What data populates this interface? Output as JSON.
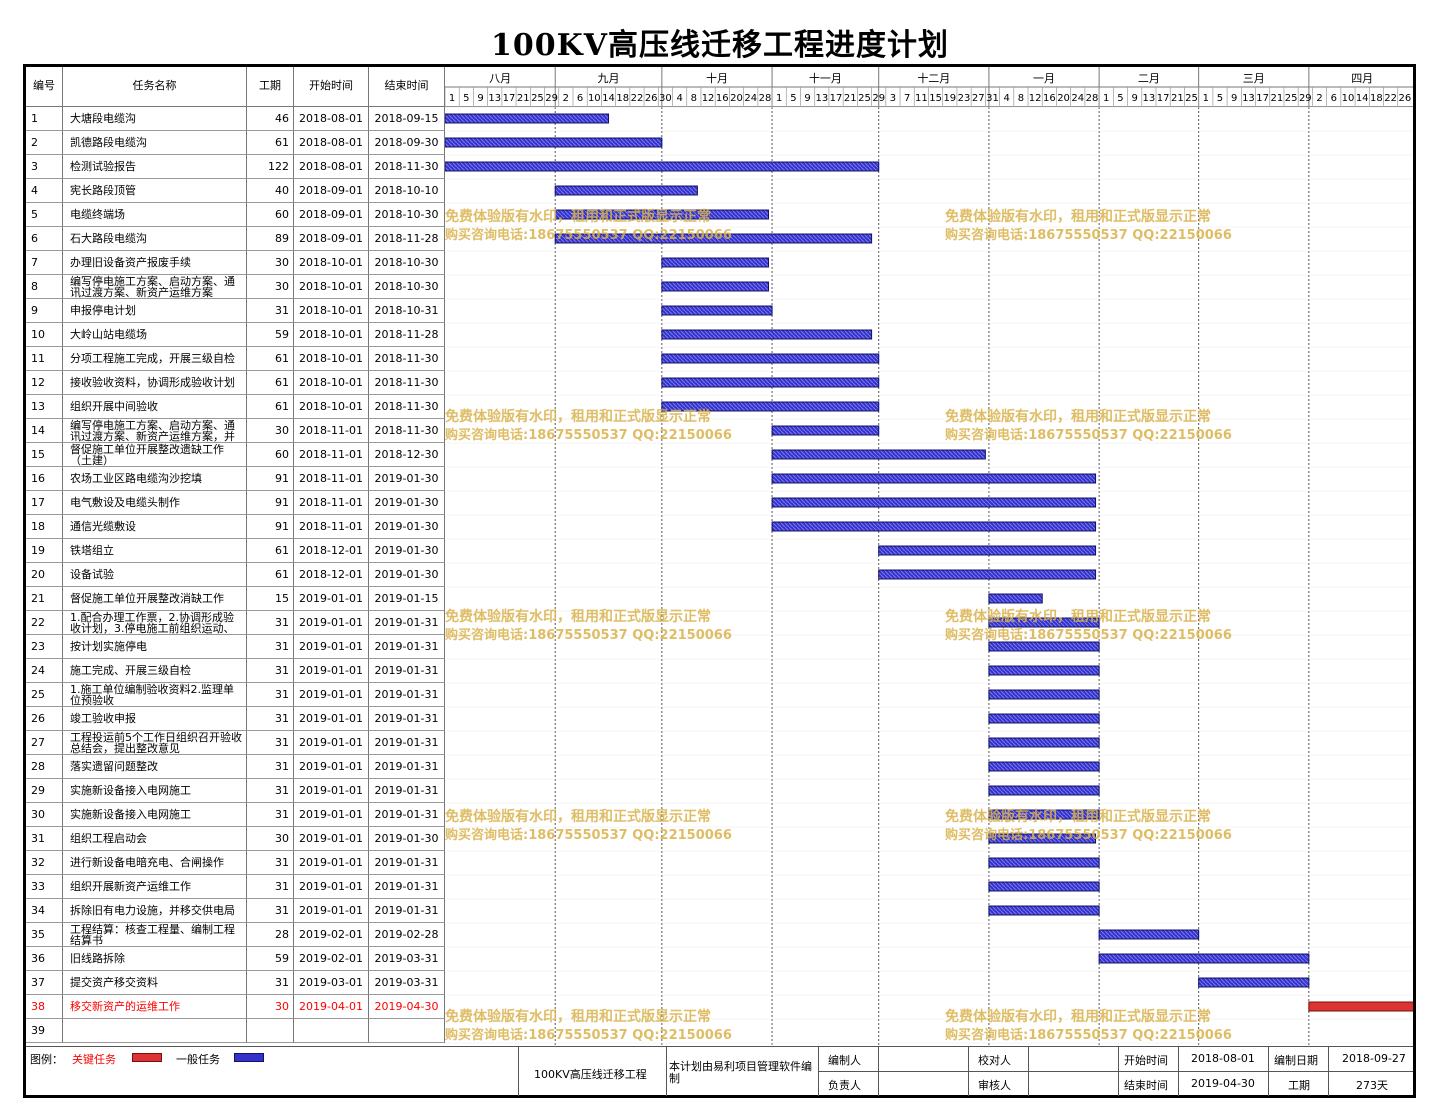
{
  "title": "100KV高压线迁移工程进度计划",
  "columns": {
    "id": "编号",
    "name": "任务名称",
    "duration": "工期",
    "start": "开始时间",
    "end": "结束时间"
  },
  "months": [
    "八月",
    "九月",
    "十月",
    "十一月",
    "十二月",
    "一月",
    "二月",
    "三月",
    "四月"
  ],
  "day_ticks": [
    "1",
    "5",
    "9",
    "13",
    "17",
    "21",
    "25",
    "29",
    "2",
    "6",
    "10",
    "14",
    "18",
    "22",
    "26",
    "30",
    "4",
    "8",
    "12",
    "16",
    "20",
    "24",
    "28",
    "1",
    "5",
    "9",
    "13",
    "17",
    "21",
    "25",
    "29",
    "3",
    "7",
    "11",
    "15",
    "19",
    "23",
    "27",
    "31",
    "4",
    "8",
    "12",
    "16",
    "20",
    "24",
    "28",
    "1",
    "5",
    "9",
    "13",
    "17",
    "21",
    "25",
    "1",
    "5",
    "9",
    "13",
    "17",
    "21",
    "25",
    "29",
    "2",
    "6",
    "10",
    "14",
    "18",
    "22",
    "26"
  ],
  "watermark": {
    "line1": "免费体验版有水印，租用和正式版显示正常",
    "line2": "购买咨询电话:18675550537 QQ:22150066"
  },
  "colors": {
    "normal": "#3333cc",
    "critical": "#dd3333",
    "critical_text": "#ff0000",
    "watermark": "#d9b24a",
    "grid": "#999999"
  },
  "chart_data": {
    "type": "gantt",
    "timeline_start": "2018-08-01",
    "timeline_end": "2019-04-30",
    "tasks": [
      {
        "id": "1",
        "name": "大塘段电缆沟",
        "duration": "46",
        "start": "2018-08-01",
        "end": "2018-09-15",
        "critical": false
      },
      {
        "id": "2",
        "name": "凯德路段电缆沟",
        "duration": "61",
        "start": "2018-08-01",
        "end": "2018-09-30",
        "critical": false
      },
      {
        "id": "3",
        "name": "检测试验报告",
        "duration": "122",
        "start": "2018-08-01",
        "end": "2018-11-30",
        "critical": false
      },
      {
        "id": "4",
        "name": "宪长路段顶管",
        "duration": "40",
        "start": "2018-09-01",
        "end": "2018-10-10",
        "critical": false
      },
      {
        "id": "5",
        "name": "电缆终端场",
        "duration": "60",
        "start": "2018-09-01",
        "end": "2018-10-30",
        "critical": false
      },
      {
        "id": "6",
        "name": "石大路段电缆沟",
        "duration": "89",
        "start": "2018-09-01",
        "end": "2018-11-28",
        "critical": false
      },
      {
        "id": "7",
        "name": "办理旧设备资产报废手续",
        "duration": "30",
        "start": "2018-10-01",
        "end": "2018-10-30",
        "critical": false
      },
      {
        "id": "8",
        "name": "编写停电施工方案、启动方案、通讯过渡方案、新资产运维方案",
        "duration": "30",
        "start": "2018-10-01",
        "end": "2018-10-30",
        "critical": false
      },
      {
        "id": "9",
        "name": "申报停电计划",
        "duration": "31",
        "start": "2018-10-01",
        "end": "2018-10-31",
        "critical": false
      },
      {
        "id": "10",
        "name": "大岭山站电缆场",
        "duration": "59",
        "start": "2018-10-01",
        "end": "2018-11-28",
        "critical": false
      },
      {
        "id": "11",
        "name": "分项工程施工完成，开展三级自检",
        "duration": "61",
        "start": "2018-10-01",
        "end": "2018-11-30",
        "critical": false
      },
      {
        "id": "12",
        "name": "接收验收资料，协调形成验收计划",
        "duration": "61",
        "start": "2018-10-01",
        "end": "2018-11-30",
        "critical": false
      },
      {
        "id": "13",
        "name": "组织开展中间验收",
        "duration": "61",
        "start": "2018-10-01",
        "end": "2018-11-30",
        "critical": false
      },
      {
        "id": "14",
        "name": "编写停电施工方案、启动方案、通讯过渡方案、新资产运维方案，并反馈修改意见",
        "duration": "30",
        "start": "2018-11-01",
        "end": "2018-11-30",
        "critical": false
      },
      {
        "id": "15",
        "name": "督促施工单位开展整改遗缺工作（土建）",
        "duration": "60",
        "start": "2018-11-01",
        "end": "2018-12-30",
        "critical": false
      },
      {
        "id": "16",
        "name": "农场工业区路电缆沟沙挖填",
        "duration": "91",
        "start": "2018-11-01",
        "end": "2019-01-30",
        "critical": false
      },
      {
        "id": "17",
        "name": "电气敷设及电缆头制作",
        "duration": "91",
        "start": "2018-11-01",
        "end": "2019-01-30",
        "critical": false
      },
      {
        "id": "18",
        "name": "通信光缆敷设",
        "duration": "91",
        "start": "2018-11-01",
        "end": "2019-01-30",
        "critical": false
      },
      {
        "id": "19",
        "name": "铁塔组立",
        "duration": "61",
        "start": "2018-12-01",
        "end": "2019-01-30",
        "critical": false
      },
      {
        "id": "20",
        "name": "设备试验",
        "duration": "61",
        "start": "2018-12-01",
        "end": "2019-01-30",
        "critical": false
      },
      {
        "id": "21",
        "name": "督促施工单位开展整改消缺工作",
        "duration": "15",
        "start": "2019-01-01",
        "end": "2019-01-15",
        "critical": false
      },
      {
        "id": "22",
        "name": "1.配合办理工作票，2.协调形成验收计划，3.停电施工前组织运动、监理、施工单位开展安全技术交底",
        "duration": "31",
        "start": "2019-01-01",
        "end": "2019-01-31",
        "critical": false
      },
      {
        "id": "23",
        "name": "按计划实施停电",
        "duration": "31",
        "start": "2019-01-01",
        "end": "2019-01-31",
        "critical": false
      },
      {
        "id": "24",
        "name": "施工完成、开展三级自检",
        "duration": "31",
        "start": "2019-01-01",
        "end": "2019-01-31",
        "critical": false
      },
      {
        "id": "25",
        "name": "1.施工单位编制验收资料2.监理单位预验收",
        "duration": "31",
        "start": "2019-01-01",
        "end": "2019-01-31",
        "critical": false
      },
      {
        "id": "26",
        "name": "竣工验收申报",
        "duration": "31",
        "start": "2019-01-01",
        "end": "2019-01-31",
        "critical": false
      },
      {
        "id": "27",
        "name": "工程投运前5个工作日组织召开验收总结会，提出整改意见",
        "duration": "31",
        "start": "2019-01-01",
        "end": "2019-01-31",
        "critical": false
      },
      {
        "id": "28",
        "name": "落实遗留问题整改",
        "duration": "31",
        "start": "2019-01-01",
        "end": "2019-01-31",
        "critical": false
      },
      {
        "id": "29",
        "name": "实施新设备接入电网施工",
        "duration": "31",
        "start": "2019-01-01",
        "end": "2019-01-31",
        "critical": false
      },
      {
        "id": "30",
        "name": "实施新设备接入电网施工",
        "duration": "31",
        "start": "2019-01-01",
        "end": "2019-01-31",
        "critical": false
      },
      {
        "id": "31",
        "name": "组织工程启动会",
        "duration": "30",
        "start": "2019-01-01",
        "end": "2019-01-30",
        "critical": false
      },
      {
        "id": "32",
        "name": "进行新设备电暗充电、合闸操作",
        "duration": "31",
        "start": "2019-01-01",
        "end": "2019-01-31",
        "critical": false
      },
      {
        "id": "33",
        "name": "组织开展新资产运维工作",
        "duration": "31",
        "start": "2019-01-01",
        "end": "2019-01-31",
        "critical": false
      },
      {
        "id": "34",
        "name": "拆除旧有电力设施，并移交供电局",
        "duration": "31",
        "start": "2019-01-01",
        "end": "2019-01-31",
        "critical": false
      },
      {
        "id": "35",
        "name": "工程结算：核查工程量、编制工程结算书",
        "duration": "28",
        "start": "2019-02-01",
        "end": "2019-02-28",
        "critical": false
      },
      {
        "id": "36",
        "name": "旧线路拆除",
        "duration": "59",
        "start": "2019-02-01",
        "end": "2019-03-31",
        "critical": false
      },
      {
        "id": "37",
        "name": "提交资产移交资料",
        "duration": "31",
        "start": "2019-03-01",
        "end": "2019-03-31",
        "critical": false
      },
      {
        "id": "38",
        "name": "移交新资产的运维工作",
        "duration": "30",
        "start": "2019-04-01",
        "end": "2019-04-30",
        "critical": true
      },
      {
        "id": "39",
        "name": "",
        "duration": "",
        "start": "",
        "end": "",
        "critical": false
      }
    ]
  },
  "footer": {
    "legend_label": "图例：",
    "critical_label": "关键任务",
    "normal_label": "一般任务",
    "project_name": "100KV高压线迁移工程",
    "software_note": "本计划由易利项目管理软件编制",
    "editor_label": "编制人",
    "checker_label": "校对人",
    "manager_label": "负责人",
    "reviewer_label": "审核人",
    "start_label": "开始时间",
    "start_value": "2018-08-01",
    "end_label": "结束时间",
    "end_value": "2019-04-30",
    "date_label": "编制日期",
    "date_value": "2018-09-27",
    "duration_label": "工期",
    "duration_value": "273天"
  }
}
